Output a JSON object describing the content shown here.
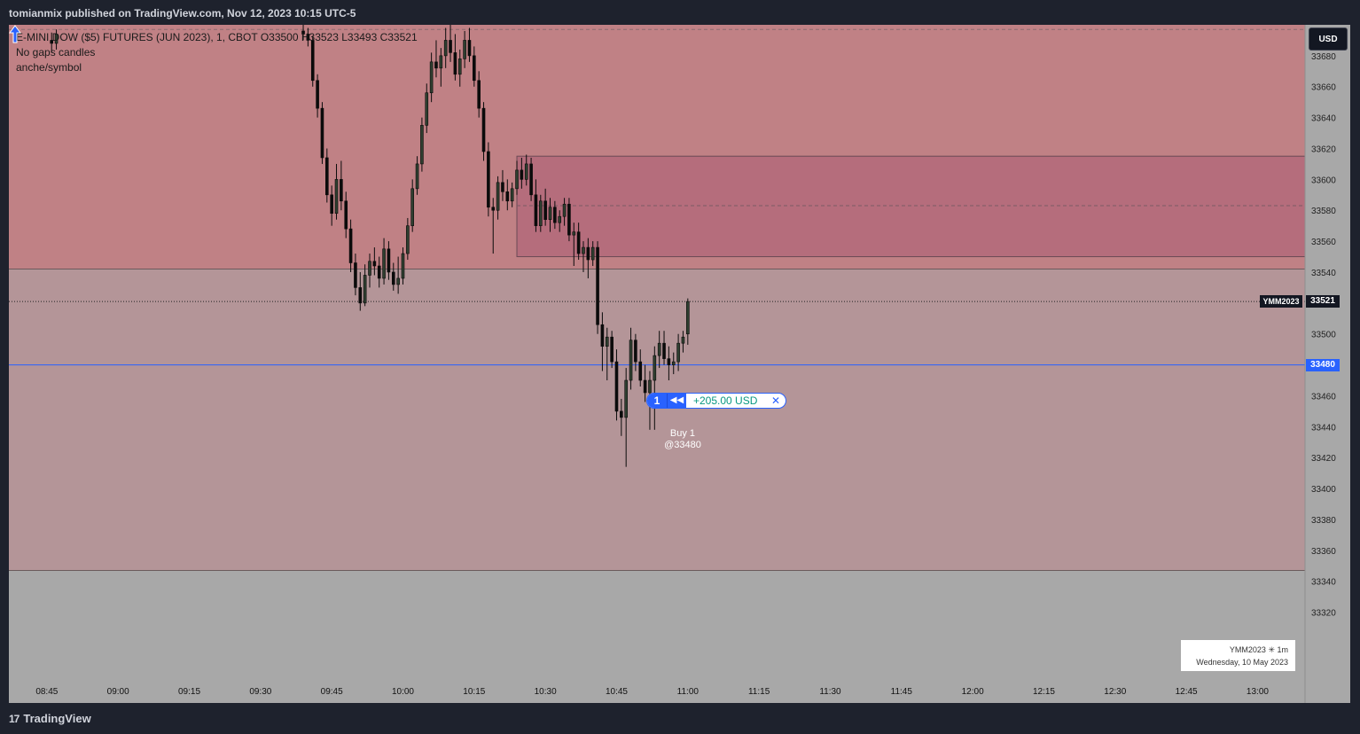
{
  "header": {
    "publisher_line": "tomianmix published on TradingView.com, Nov 12, 2023 10:15 UTC-5"
  },
  "legend": {
    "symbol_line": "E-MINI DOW ($5) FUTURES (JUN 2023), 1, CBOT  O33500  H33523  L33493  C33521",
    "line2": "No gaps candles",
    "line3": "anche/symbol"
  },
  "currency_button": "USD",
  "last_price": {
    "symbol": "YMM2023",
    "value": "33521"
  },
  "position": {
    "line_price": "33480",
    "qty": "1",
    "reverse_icon": "reverse-icon",
    "pnl": "+205.00 USD",
    "close_icon": "close-icon"
  },
  "execution": {
    "line1": "Buy 1",
    "line2": "@33480"
  },
  "info_box": {
    "line1": "YMM2023 ✳ 1m",
    "line2": "Wednesday, 10 May 2023"
  },
  "footer": {
    "brand": "TradingView",
    "logo_icon": "tradingview-logo-icon"
  },
  "colors": {
    "upper_zone": "#c08185",
    "inner_zone": "#b56d7c",
    "lower_zone": "#b49598",
    "below_zone": "#a8a8a8",
    "position_line": "#2962ff",
    "pnl": "#089981"
  },
  "chart_data": {
    "type": "candlestick",
    "symbol": "YMM2023",
    "interval": "1m",
    "ylim": [
      33310,
      33700
    ],
    "y_ticks": [
      33680,
      33660,
      33640,
      33620,
      33600,
      33580,
      33560,
      33540,
      33520,
      33500,
      33480,
      33460,
      33440,
      33420,
      33400,
      33380,
      33360,
      33340,
      33320
    ],
    "x_ticks": [
      "08:45",
      "09:00",
      "09:15",
      "09:30",
      "09:45",
      "10:00",
      "10:15",
      "10:30",
      "10:45",
      "11:00",
      "11:15",
      "11:30",
      "11:45",
      "12:00",
      "12:15",
      "12:30",
      "12:45",
      "13:00"
    ],
    "zones": [
      {
        "kind": "upper",
        "from": 33542,
        "to": 33700
      },
      {
        "kind": "inner",
        "from": 33550,
        "to": 33615,
        "start_time": "10:24",
        "mid_dashed": 33583
      },
      {
        "kind": "lower",
        "from": 33347,
        "to": 33542
      }
    ],
    "dashed_top": 33697,
    "ohlc": [
      [
        "08:46",
        33690,
        33695,
        33682,
        33688
      ],
      [
        "08:47",
        33688,
        33697,
        33684,
        33694
      ],
      [
        "09:39",
        33696,
        33702,
        33690,
        33694
      ],
      [
        "09:40",
        33694,
        33698,
        33686,
        33690
      ],
      [
        "09:41",
        33690,
        33693,
        33660,
        33664
      ],
      [
        "09:42",
        33664,
        33668,
        33640,
        33646
      ],
      [
        "09:43",
        33646,
        33650,
        33610,
        33614
      ],
      [
        "09:44",
        33614,
        33620,
        33585,
        33590
      ],
      [
        "09:45",
        33590,
        33596,
        33570,
        33578
      ],
      [
        "09:46",
        33578,
        33610,
        33574,
        33600
      ],
      [
        "09:47",
        33600,
        33612,
        33580,
        33586
      ],
      [
        "09:48",
        33586,
        33592,
        33562,
        33568
      ],
      [
        "09:49",
        33568,
        33574,
        33540,
        33546
      ],
      [
        "09:50",
        33546,
        33552,
        33525,
        33530
      ],
      [
        "09:51",
        33530,
        33540,
        33515,
        33520
      ],
      [
        "09:52",
        33520,
        33545,
        33518,
        33538
      ],
      [
        "09:53",
        33538,
        33552,
        33530,
        33547
      ],
      [
        "09:54",
        33547,
        33556,
        33538,
        33544
      ],
      [
        "09:55",
        33544,
        33550,
        33530,
        33536
      ],
      [
        "09:56",
        33536,
        33562,
        33532,
        33555
      ],
      [
        "09:57",
        33555,
        33560,
        33535,
        33540
      ],
      [
        "09:58",
        33540,
        33546,
        33528,
        33532
      ],
      [
        "09:59",
        33532,
        33550,
        33526,
        33536
      ],
      [
        "10:00",
        33536,
        33556,
        33532,
        33552
      ],
      [
        "10:01",
        33552,
        33575,
        33548,
        33570
      ],
      [
        "10:02",
        33570,
        33600,
        33566,
        33594
      ],
      [
        "10:03",
        33594,
        33615,
        33590,
        33610
      ],
      [
        "10:04",
        33610,
        33640,
        33605,
        33635
      ],
      [
        "10:05",
        33635,
        33662,
        33630,
        33656
      ],
      [
        "10:06",
        33656,
        33682,
        33650,
        33676
      ],
      [
        "10:07",
        33676,
        33690,
        33666,
        33672
      ],
      [
        "10:08",
        33672,
        33685,
        33660,
        33680
      ],
      [
        "10:09",
        33680,
        33698,
        33672,
        33690
      ],
      [
        "10:10",
        33690,
        33700,
        33676,
        33682
      ],
      [
        "10:11",
        33682,
        33694,
        33664,
        33668
      ],
      [
        "10:12",
        33668,
        33684,
        33660,
        33678
      ],
      [
        "10:13",
        33678,
        33696,
        33672,
        33690
      ],
      [
        "10:14",
        33690,
        33698,
        33676,
        33680
      ],
      [
        "10:15",
        33680,
        33686,
        33660,
        33664
      ],
      [
        "10:16",
        33664,
        33670,
        33640,
        33646
      ],
      [
        "10:17",
        33646,
        33650,
        33612,
        33618
      ],
      [
        "10:18",
        33618,
        33624,
        33576,
        33582
      ],
      [
        "10:19",
        33582,
        33588,
        33552,
        33580
      ],
      [
        "10:20",
        33580,
        33602,
        33574,
        33598
      ],
      [
        "10:21",
        33598,
        33606,
        33586,
        33592
      ],
      [
        "10:22",
        33592,
        33600,
        33580,
        33586
      ],
      [
        "10:23",
        33586,
        33598,
        33582,
        33594
      ],
      [
        "10:24",
        33594,
        33612,
        33590,
        33606
      ],
      [
        "10:25",
        33606,
        33614,
        33594,
        33600
      ],
      [
        "10:26",
        33600,
        33616,
        33596,
        33610
      ],
      [
        "10:27",
        33610,
        33614,
        33586,
        33590
      ],
      [
        "10:28",
        33590,
        33600,
        33566,
        33570
      ],
      [
        "10:29",
        33570,
        33590,
        33566,
        33586
      ],
      [
        "10:30",
        33586,
        33594,
        33570,
        33574
      ],
      [
        "10:31",
        33574,
        33588,
        33566,
        33582
      ],
      [
        "10:32",
        33582,
        33586,
        33568,
        33572
      ],
      [
        "10:33",
        33572,
        33580,
        33566,
        33576
      ],
      [
        "10:34",
        33576,
        33588,
        33570,
        33584
      ],
      [
        "10:35",
        33584,
        33588,
        33560,
        33564
      ],
      [
        "10:36",
        33564,
        33572,
        33544,
        33566
      ],
      [
        "10:37",
        33566,
        33572,
        33548,
        33552
      ],
      [
        "10:38",
        33552,
        33560,
        33540,
        33556
      ],
      [
        "10:39",
        33556,
        33562,
        33536,
        33548
      ],
      [
        "10:40",
        33548,
        33560,
        33544,
        33556
      ],
      [
        "10:41",
        33556,
        33560,
        33500,
        33506
      ],
      [
        "10:42",
        33506,
        33514,
        33476,
        33492
      ],
      [
        "10:43",
        33492,
        33504,
        33470,
        33498
      ],
      [
        "10:44",
        33498,
        33502,
        33478,
        33482
      ],
      [
        "10:45",
        33482,
        33490,
        33444,
        33450
      ],
      [
        "10:46",
        33450,
        33458,
        33434,
        33446
      ],
      [
        "10:47",
        33446,
        33478,
        33414,
        33470
      ],
      [
        "10:48",
        33470,
        33504,
        33464,
        33496
      ],
      [
        "10:49",
        33496,
        33500,
        33476,
        33482
      ],
      [
        "10:50",
        33482,
        33490,
        33466,
        33470
      ],
      [
        "10:51",
        33470,
        33480,
        33456,
        33462
      ],
      [
        "10:52",
        33462,
        33476,
        33438,
        33470
      ],
      [
        "10:53",
        33470,
        33492,
        33438,
        33486
      ],
      [
        "10:54",
        33486,
        33502,
        33478,
        33494
      ],
      [
        "10:55",
        33494,
        33502,
        33480,
        33484
      ],
      [
        "10:56",
        33484,
        33492,
        33470,
        33480
      ],
      [
        "10:57",
        33480,
        33488,
        33474,
        33482
      ],
      [
        "10:58",
        33482,
        33500,
        33476,
        33494
      ],
      [
        "10:59",
        33494,
        33502,
        33488,
        33498
      ],
      [
        "11:00",
        33500,
        33523,
        33493,
        33521
      ]
    ]
  }
}
